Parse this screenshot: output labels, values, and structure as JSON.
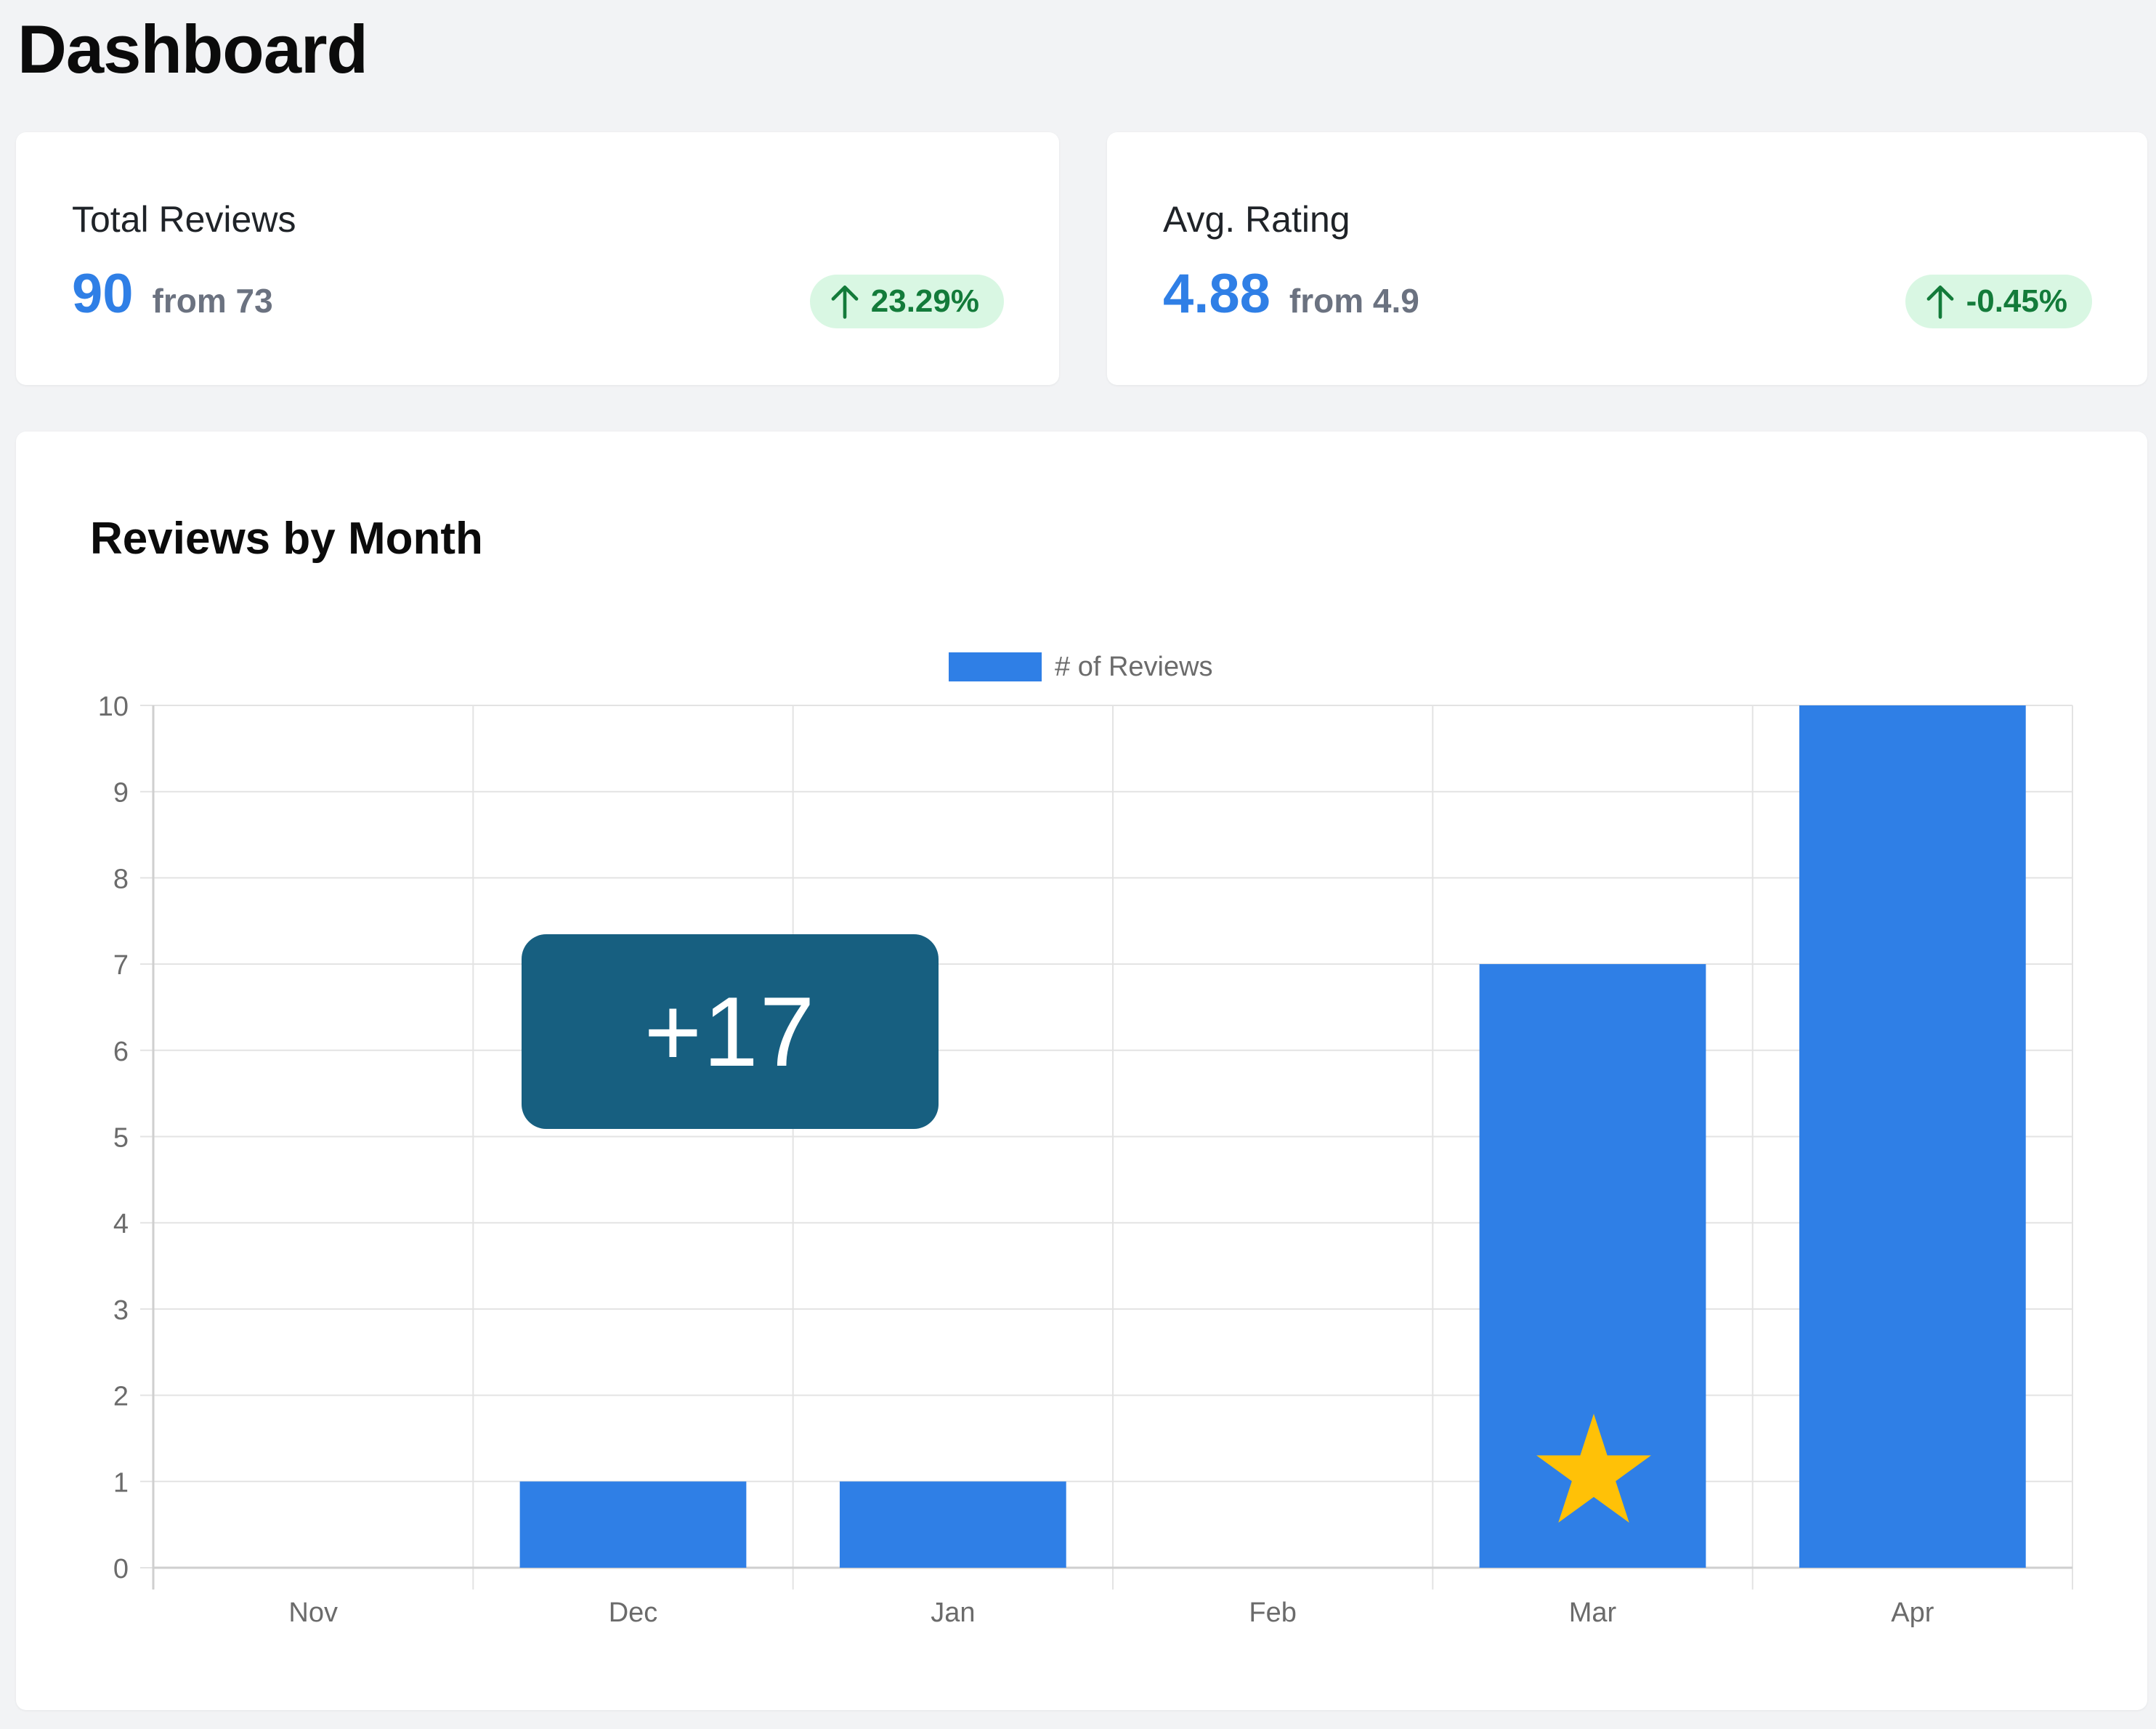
{
  "page": {
    "title": "Dashboard"
  },
  "stats": [
    {
      "label": "Total Reviews",
      "value": "90",
      "from": "from 73",
      "change": "23.29%",
      "change_icon": "arrow-up-icon"
    },
    {
      "label": "Avg. Rating",
      "value": "4.88",
      "from": "from 4.9",
      "change": "-0.45%",
      "change_icon": "arrow-up-icon"
    }
  ],
  "chart_section": {
    "title": "Reviews by Month"
  },
  "overlay": {
    "label": "+17"
  },
  "colors": {
    "accent": "#2f7fe6",
    "badge_bg": "#d9f7e3",
    "badge_text": "#137b3a",
    "overlay_bg": "#175f80",
    "star": "#ffc107"
  },
  "markers": {
    "star_category": "Mar",
    "star_icon": "star-icon"
  },
  "chart_data": {
    "type": "bar",
    "categories": [
      "Nov",
      "Dec",
      "Jan",
      "Feb",
      "Mar",
      "Apr"
    ],
    "series": [
      {
        "name": "# of Reviews",
        "values": [
          0,
          1,
          1,
          0,
          7,
          10
        ],
        "color": "#2f7fe6"
      }
    ],
    "ylim": [
      0,
      10
    ],
    "yticks": [
      0,
      1,
      2,
      3,
      4,
      5,
      6,
      7,
      8,
      9,
      10
    ],
    "grid": true,
    "legend": "top-center"
  }
}
